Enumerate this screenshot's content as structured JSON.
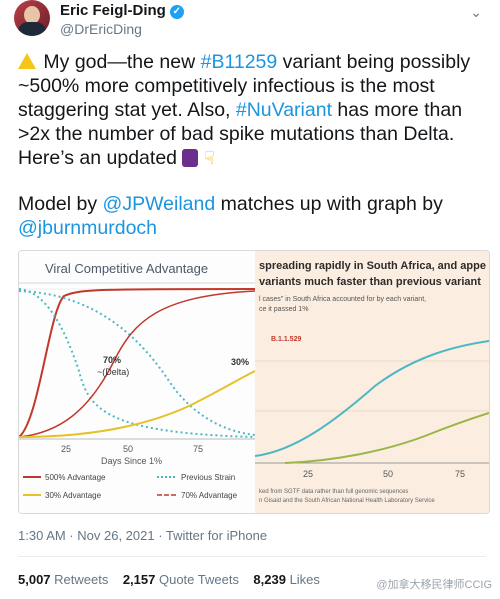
{
  "author": {
    "name": "Eric Feigl-Ding",
    "handle": "@DrEricDing",
    "verified_badge": "✓",
    "menu_icon": "chevron-down-icon"
  },
  "tweet": {
    "line1_pre": " My god—the new ",
    "line1_tag": "#B11259",
    "line1_post": " variant being possibly",
    "line2": "~500% more competitively infectious is the most",
    "line3_pre": "staggering stat yet. Also, ",
    "line3_tag": "#NuVariant",
    "line3_post": " has more than",
    "line4": ">2x the number of bad spike mutations than Delta.",
    "line5": "Here’s an updated ",
    "para2_pre": "Model by ",
    "para2_mention1": "@JPWeiland",
    "para2_mid": " matches up with graph by",
    "para2_mention2": "@jburnmurdoch"
  },
  "media": {
    "left": {
      "title": "Viral Competitive Advantage",
      "annotation_70": "70%",
      "annotation_delta": "~(Delta)",
      "annotation_30": "30%",
      "xlabel": "Days Since 1%",
      "xticks": [
        "25",
        "50",
        "75"
      ],
      "legend": [
        "500% Advantage",
        "Previous Strain",
        "30% Advantage",
        "70% Advantage"
      ]
    },
    "right": {
      "title_line1": "spreading rapidly in South Africa, and appe",
      "title_line2": "variants much faster than previous variant",
      "subtitle_line1": "l cases\" in South Africa accounted for by each variant,",
      "subtitle_line2": "ce it passed 1%",
      "series_label": "B.1.1.529",
      "xticks": [
        "25",
        "50",
        "75"
      ],
      "source_line1": "ked from SGTF data rather than full genomic sequences",
      "source_line2": "n Gisaid and the South African National Health Laboratory Service"
    }
  },
  "meta": {
    "timestamp": "1:30 AM · Nov 26, 2021 · Twitter for iPhone"
  },
  "stats": {
    "retweets_count": "5,007",
    "retweets_label": " Retweets",
    "quotes_count": "2,157",
    "quotes_label": " Quote Tweets",
    "likes_count": "8,239",
    "likes_label": " Likes"
  },
  "watermark": "@加拿大移民律师CCIG",
  "colors": {
    "link": "#1b95e0",
    "red_curve": "#c0392b",
    "yellow_curve": "#e6c229",
    "teal_curve": "#4db8c4",
    "green_curve": "#9ab548"
  }
}
